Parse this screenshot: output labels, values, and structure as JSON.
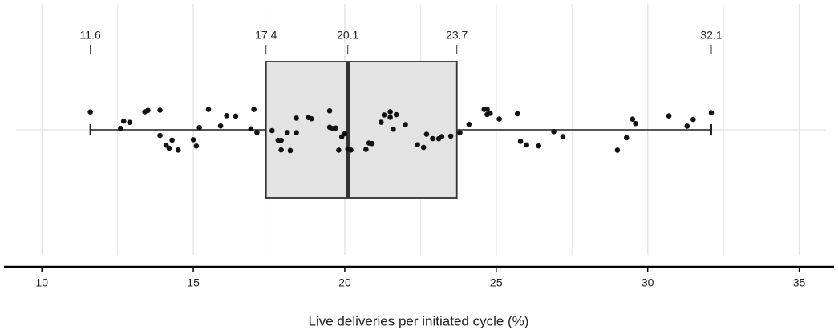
{
  "chart_data": {
    "type": "box",
    "x_label": "Live deliveries per initiated cycle (%)",
    "xlim": [
      8.75,
      36.15
    ],
    "xticks": [
      10,
      15,
      20,
      25,
      30,
      35
    ],
    "minor_xticks": [
      12.5,
      17.5,
      22.5,
      27.5,
      32.5
    ],
    "grid": true,
    "box": {
      "min": 11.6,
      "q1": 17.4,
      "median": 20.1,
      "q3": 23.7,
      "max": 32.1,
      "color": "#e3e3e3"
    },
    "points": {
      "color": "#111111",
      "values": [
        11.6,
        12.6,
        12.7,
        12.9,
        13.4,
        13.5,
        13.9,
        13.9,
        14.1,
        14.2,
        14.3,
        14.5,
        15.0,
        15.1,
        15.2,
        15.5,
        15.9,
        16.1,
        16.4,
        16.9,
        17.0,
        17.1,
        17.6,
        17.8,
        17.9,
        17.9,
        18.1,
        18.2,
        18.4,
        18.4,
        18.8,
        18.9,
        19.5,
        19.5,
        19.6,
        19.7,
        19.8,
        19.9,
        20.0,
        20.1,
        20.2,
        20.7,
        20.8,
        20.9,
        21.2,
        21.3,
        21.5,
        21.5,
        21.6,
        21.7,
        22.0,
        22.4,
        22.6,
        22.7,
        22.9,
        23.1,
        23.2,
        23.5,
        23.8,
        24.1,
        24.6,
        24.7,
        24.7,
        24.8,
        25.1,
        25.7,
        25.8,
        26.0,
        26.4,
        26.9,
        27.2,
        29.0,
        29.3,
        29.5,
        29.6,
        30.7,
        31.3,
        31.5,
        32.1
      ]
    }
  }
}
